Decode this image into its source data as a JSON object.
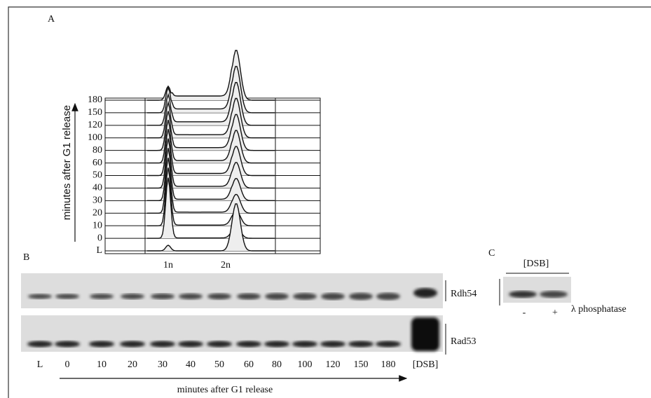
{
  "panels": {
    "a": {
      "label": "A",
      "y_axis_label": "minutes after  G1 release",
      "rows": [
        "180",
        "150",
        "120",
        "100",
        "80",
        "60",
        "50",
        "40",
        "30",
        "20",
        "10",
        "0",
        "L"
      ],
      "x_labels": [
        "1n",
        "2n"
      ]
    },
    "b": {
      "label": "B",
      "blots": [
        "Rdh54",
        "Rad53"
      ],
      "lanes": [
        "L",
        "0",
        "10",
        "20",
        "30",
        "40",
        "50",
        "60",
        "80",
        "100",
        "120",
        "150",
        "180",
        "[DSB]"
      ],
      "x_axis_label": "minutes after  G1 release"
    },
    "c": {
      "label": "C",
      "header": "[DSB]",
      "lanes": [
        "-",
        "+"
      ],
      "treatment": "λ phosphatase"
    }
  }
}
